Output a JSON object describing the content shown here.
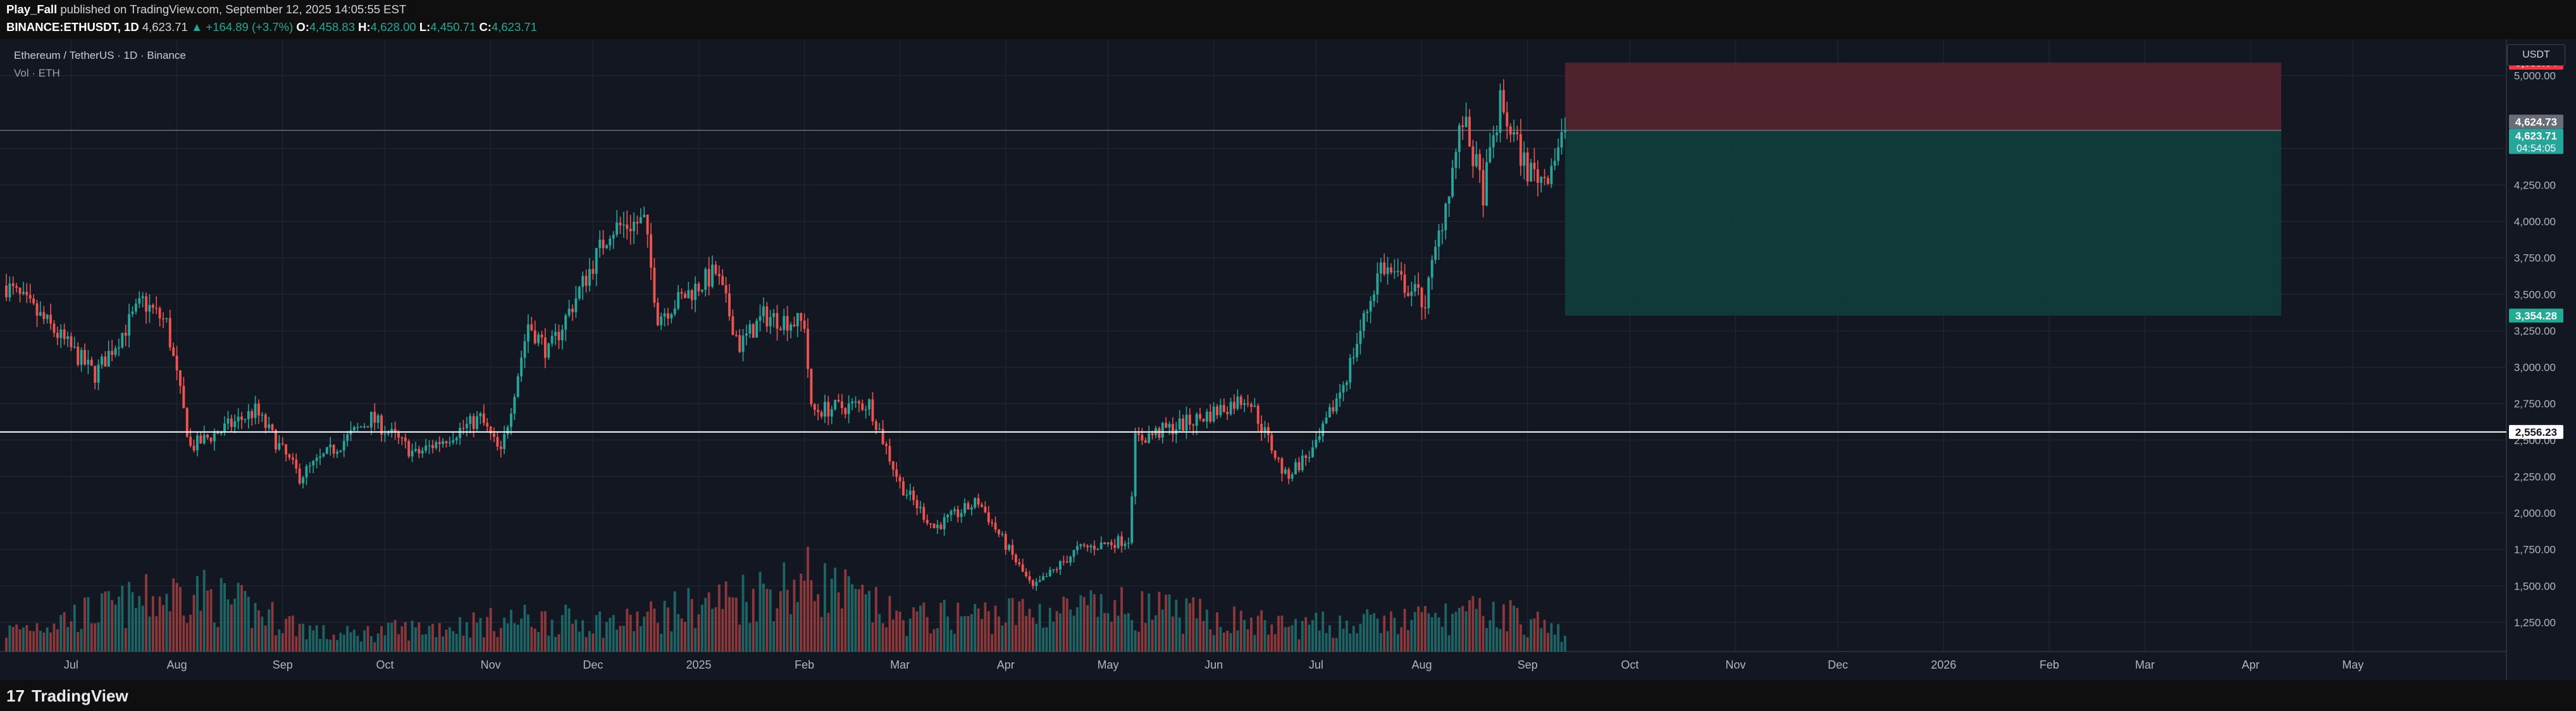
{
  "header": {
    "author": "Play_Fall",
    "published_text": "published on TradingView.com, September 12, 2025 14:05:55 EST",
    "symbol": "BINANCE:ETHUSDT, 1D",
    "last": "4,623.71",
    "change": "▲ +164.89 (+3.7%)",
    "o_label": "O:",
    "o": "4,458.83",
    "h_label": "H:",
    "h": "4,628.00",
    "l_label": "L:",
    "l": "4,450.71",
    "c_label": "C:",
    "c": "4,623.71"
  },
  "legend": {
    "title": "Ethereum / TetherUS · 1D · Binance",
    "volume": "Vol · ETH"
  },
  "currency_button": "USDT",
  "footer": {
    "brand": "TradingView",
    "logo_mark": "17"
  },
  "colors": {
    "up": "#26a69a",
    "down": "#ef5350",
    "background": "#131722",
    "grid": "#1f2430",
    "stop_zone": "#5a2630",
    "target_zone": "#10403d"
  },
  "chart_data": {
    "type": "candlestick",
    "symbol": "ETHUSDT",
    "timeframe": "1D",
    "ylim": [
      1050,
      5250
    ],
    "y_ticks": [
      1250,
      1500,
      1750,
      2000,
      2250,
      2500,
      2750,
      3000,
      3250,
      3500,
      3750,
      4000,
      4250,
      4500,
      5000
    ],
    "y_tick_labels": [
      "1,250.00",
      "1,500.00",
      "1,750.00",
      "2,000.00",
      "2,250.00",
      "2,500.00",
      "2,750.00",
      "3,000.00",
      "3,250.00",
      "3,500.00",
      "3,750.00",
      "4,000.00",
      "4,250.00",
      "4,500.00",
      "5,000.00"
    ],
    "x_range": [
      "2024-06-12",
      "2026-06-15"
    ],
    "x_ticks": [
      {
        "date": "2024-07-01",
        "label": "Jul"
      },
      {
        "date": "2024-08-01",
        "label": "Aug"
      },
      {
        "date": "2024-09-01",
        "label": "Sep"
      },
      {
        "date": "2024-10-01",
        "label": "Oct"
      },
      {
        "date": "2024-11-01",
        "label": "Nov"
      },
      {
        "date": "2024-12-01",
        "label": "Dec"
      },
      {
        "date": "2025-01-01",
        "label": "2025"
      },
      {
        "date": "2025-02-01",
        "label": "Feb"
      },
      {
        "date": "2025-03-01",
        "label": "Mar"
      },
      {
        "date": "2025-04-01",
        "label": "Apr"
      },
      {
        "date": "2025-05-01",
        "label": "May"
      },
      {
        "date": "2025-06-01",
        "label": "Jun"
      },
      {
        "date": "2025-07-01",
        "label": "Jul"
      },
      {
        "date": "2025-08-01",
        "label": "Aug"
      },
      {
        "date": "2025-09-01",
        "label": "Sep"
      },
      {
        "date": "2025-10-01",
        "label": "Oct"
      },
      {
        "date": "2025-11-01",
        "label": "Nov"
      },
      {
        "date": "2025-12-01",
        "label": "Dec"
      },
      {
        "date": "2026-01-01",
        "label": "2026"
      },
      {
        "date": "2026-02-01",
        "label": "Feb"
      },
      {
        "date": "2026-03-01",
        "label": "Mar"
      },
      {
        "date": "2026-04-01",
        "label": "Apr"
      },
      {
        "date": "2026-05-01",
        "label": "May"
      }
    ],
    "price_anchors": [
      {
        "date": "2024-06-12",
        "close": 3560
      },
      {
        "date": "2024-06-24",
        "close": 3300
      },
      {
        "date": "2024-07-08",
        "close": 2950
      },
      {
        "date": "2024-07-22",
        "close": 3450
      },
      {
        "date": "2024-07-29",
        "close": 3300
      },
      {
        "date": "2024-08-05",
        "close": 2450
      },
      {
        "date": "2024-08-24",
        "close": 2700
      },
      {
        "date": "2024-09-06",
        "close": 2250
      },
      {
        "date": "2024-09-27",
        "close": 2650
      },
      {
        "date": "2024-10-10",
        "close": 2400
      },
      {
        "date": "2024-10-29",
        "close": 2650
      },
      {
        "date": "2024-11-04",
        "close": 2400
      },
      {
        "date": "2024-11-12",
        "close": 3300
      },
      {
        "date": "2024-11-18",
        "close": 3100
      },
      {
        "date": "2024-12-06",
        "close": 3950
      },
      {
        "date": "2024-12-16",
        "close": 4000
      },
      {
        "date": "2024-12-20",
        "close": 3350
      },
      {
        "date": "2025-01-06",
        "close": 3650
      },
      {
        "date": "2025-01-13",
        "close": 3150
      },
      {
        "date": "2025-01-20",
        "close": 3350
      },
      {
        "date": "2025-02-01",
        "close": 3300
      },
      {
        "date": "2025-02-03",
        "close": 2700
      },
      {
        "date": "2025-02-20",
        "close": 2750
      },
      {
        "date": "2025-03-01",
        "close": 2200
      },
      {
        "date": "2025-03-11",
        "close": 1900
      },
      {
        "date": "2025-03-24",
        "close": 2080
      },
      {
        "date": "2025-04-09",
        "close": 1480
      },
      {
        "date": "2025-04-22",
        "close": 1750
      },
      {
        "date": "2025-05-07",
        "close": 1820
      },
      {
        "date": "2025-05-09",
        "close": 2500
      },
      {
        "date": "2025-05-28",
        "close": 2650
      },
      {
        "date": "2025-06-11",
        "close": 2800
      },
      {
        "date": "2025-06-22",
        "close": 2250
      },
      {
        "date": "2025-07-01",
        "close": 2450
      },
      {
        "date": "2025-07-10",
        "close": 2950
      },
      {
        "date": "2025-07-20",
        "close": 3700
      },
      {
        "date": "2025-08-02",
        "close": 3450
      },
      {
        "date": "2025-08-13",
        "close": 4700
      },
      {
        "date": "2025-08-19",
        "close": 4200
      },
      {
        "date": "2025-08-24",
        "close": 4800
      },
      {
        "date": "2025-09-01",
        "close": 4350
      },
      {
        "date": "2025-09-06",
        "close": 4300
      },
      {
        "date": "2025-09-12",
        "close": 4623.71
      }
    ],
    "volume_anchors": [
      {
        "date": "2024-06-12",
        "volume": 0.28
      },
      {
        "date": "2024-08-05",
        "volume": 0.85
      },
      {
        "date": "2024-09-15",
        "volume": 0.22
      },
      {
        "date": "2024-11-12",
        "volume": 0.45
      },
      {
        "date": "2024-12-10",
        "volume": 0.4
      },
      {
        "date": "2025-02-03",
        "volume": 1.0
      },
      {
        "date": "2025-03-01",
        "volume": 0.45
      },
      {
        "date": "2025-04-09",
        "volume": 0.55
      },
      {
        "date": "2025-05-09",
        "volume": 0.6
      },
      {
        "date": "2025-06-22",
        "volume": 0.35
      },
      {
        "date": "2025-07-20",
        "volume": 0.4
      },
      {
        "date": "2025-08-24",
        "volume": 0.55
      },
      {
        "date": "2025-09-12",
        "volume": 0.25
      }
    ],
    "horizontal_line": {
      "price": 2556.23,
      "label": "2,556.23"
    },
    "position": {
      "type": "short",
      "start": "2025-09-12",
      "end": "2026-04-10",
      "entry": 4624.73,
      "stop": 5089.04,
      "target": 3354.28,
      "entry_label": "4,624.73",
      "stop_label": "5,089.04",
      "target_label": "3,354.28"
    },
    "last_price": {
      "price": 4623.71,
      "label": "4,623.71",
      "countdown": "04:54:05"
    }
  }
}
